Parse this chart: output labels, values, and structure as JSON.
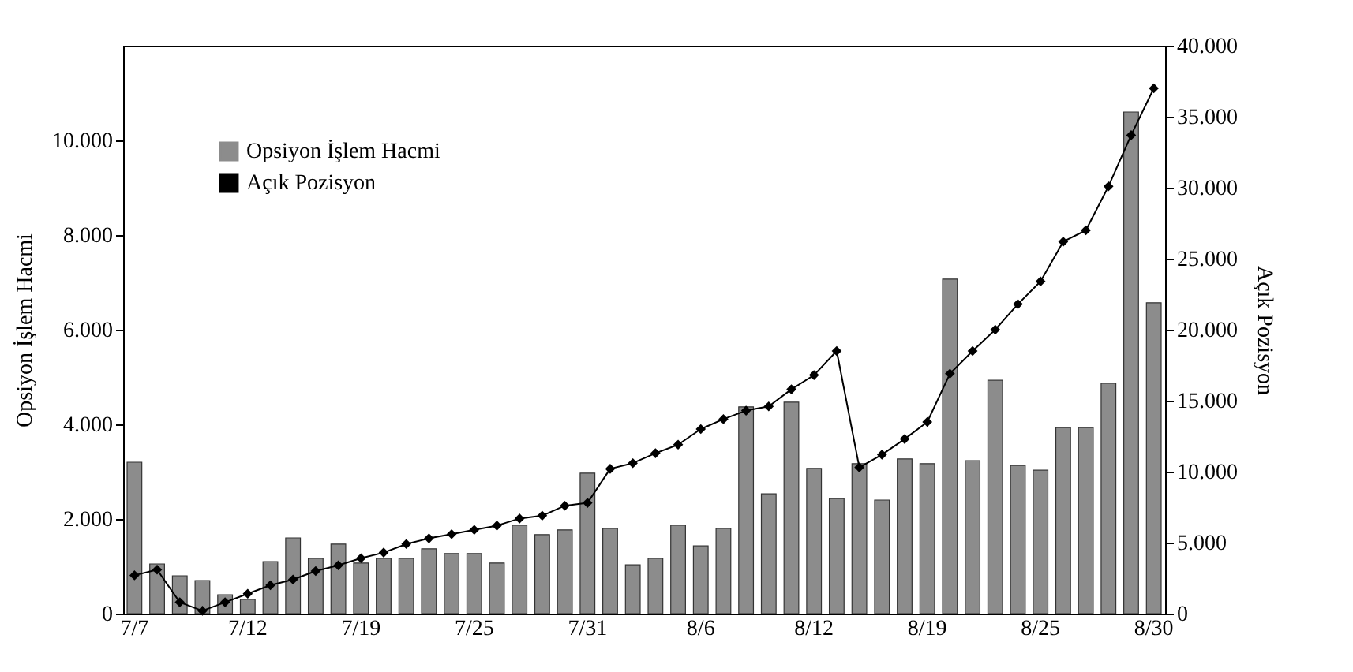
{
  "chart_data": {
    "type": "bar",
    "ylabel": "Opsiyon İşlem Hacmi",
    "y2label": "Açık Pozisyon",
    "categories": [
      "7/7",
      null,
      null,
      null,
      null,
      "7/12",
      null,
      null,
      null,
      null,
      "7/19",
      null,
      null,
      null,
      null,
      "7/25",
      null,
      null,
      null,
      null,
      "7/31",
      null,
      null,
      null,
      null,
      "8/6",
      null,
      null,
      null,
      null,
      "8/12",
      null,
      null,
      null,
      null,
      "8/19",
      null,
      null,
      null,
      null,
      "8/25",
      null,
      null,
      null,
      null,
      "8/30"
    ],
    "series": [
      {
        "name": "Opsiyon İşlem Hacmi",
        "color": "#8c8c8c",
        "values": [
          3200,
          1050,
          800,
          700,
          400,
          300,
          1100,
          1600,
          1170,
          1470,
          1070,
          1170,
          1170,
          1370,
          1270,
          1270,
          1070,
          1870,
          1670,
          1770,
          2970,
          1800,
          1030,
          1170,
          1870,
          1430,
          1800,
          4370,
          2530,
          4470,
          3070,
          2430,
          3170,
          2400,
          3270,
          3170,
          7070,
          3230,
          4930,
          3130,
          3030,
          3930,
          3930,
          4870,
          10600,
          6570
        ]
      },
      {
        "name": "Açık Pozisyon",
        "type": "line",
        "axis": "y2",
        "color": "#000000",
        "values": [
          2700,
          3100,
          800,
          200,
          800,
          1400,
          2000,
          2400,
          3000,
          3400,
          3900,
          4300,
          4900,
          5300,
          5600,
          5900,
          6200,
          6700,
          6900,
          7600,
          7800,
          10200,
          10600,
          11300,
          11900,
          13000,
          13700,
          14300,
          14600,
          15800,
          16800,
          18500,
          10300,
          11200,
          12300,
          13500,
          16900,
          18500,
          20000,
          21800,
          23400,
          26200,
          27000,
          30100,
          33700,
          37000
        ]
      }
    ],
    "ylim": [
      0,
      12000
    ],
    "yticks": [
      0,
      {
        "value": 2000,
        "label": "2.000"
      },
      {
        "value": 4000,
        "label": "4.000"
      },
      {
        "value": 6000,
        "label": "6.000"
      },
      {
        "value": 8000,
        "label": "8.000"
      },
      {
        "value": 10000,
        "label": "10.000"
      }
    ],
    "y2lim": [
      0,
      40000
    ],
    "y2ticks": [
      0,
      {
        "value": 5000,
        "label": "5.000"
      },
      {
        "value": 10000,
        "label": "10.000"
      },
      {
        "value": 15000,
        "label": "15.000"
      },
      {
        "value": 20000,
        "label": "20.000"
      },
      {
        "value": 25000,
        "label": "25.000"
      },
      {
        "value": 30000,
        "label": "30.000"
      },
      {
        "value": 35000,
        "label": "35.000"
      },
      {
        "value": 40000,
        "label": "40.000"
      }
    ],
    "legend": "top left",
    "marker": "diamond",
    "line_style": "solid",
    "grid": false
  }
}
